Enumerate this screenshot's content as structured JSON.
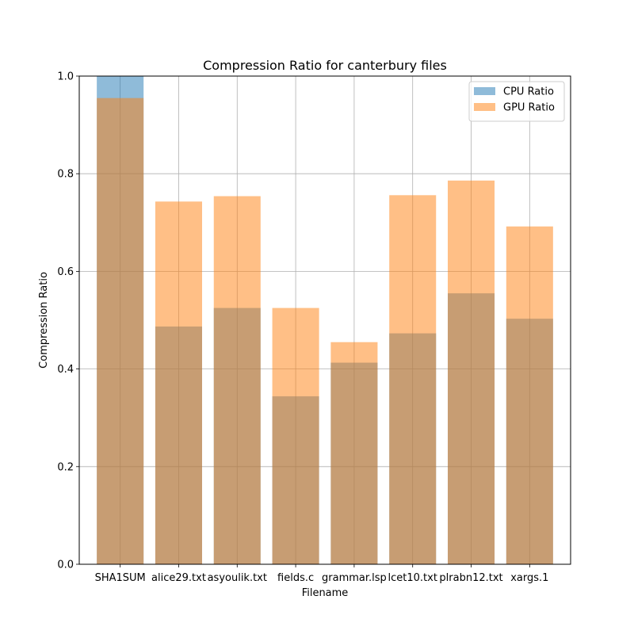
{
  "chart_data": {
    "type": "bar",
    "title": "Compression Ratio for canterbury files",
    "xlabel": "Filename",
    "ylabel": "Compression Ratio",
    "ylim": [
      0,
      1.0
    ],
    "yticks": [
      "0.0",
      "0.2",
      "0.4",
      "0.6",
      "0.8",
      "1.0"
    ],
    "categories": [
      "SHA1SUM",
      "alice29.txt",
      "asyoulik.txt",
      "fields.c",
      "grammar.lsp",
      "lcet10.txt",
      "plrabn12.txt",
      "xargs.1"
    ],
    "series": [
      {
        "name": "CPU Ratio",
        "color": "#1f77b4",
        "opacity": 0.5,
        "values": [
          1.0,
          0.487,
          0.525,
          0.344,
          0.413,
          0.473,
          0.555,
          0.503
        ]
      },
      {
        "name": "GPU Ratio",
        "color": "#ff7f0e",
        "opacity": 0.5,
        "values": [
          0.955,
          0.743,
          0.754,
          0.525,
          0.455,
          0.756,
          0.786,
          0.692
        ]
      }
    ],
    "grid": true,
    "legend_position": "top-right"
  }
}
